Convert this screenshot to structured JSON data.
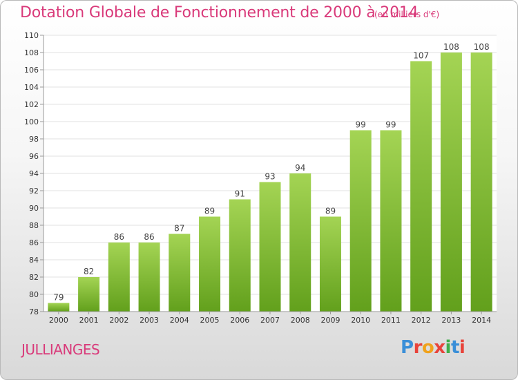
{
  "header": {
    "title": "Dotation Globale de Fonctionnement de 2000 à 2014",
    "subtitle": "(en milliers d'€)"
  },
  "footer": {
    "town": "JULLIANGES",
    "logo_text": "Proxiti",
    "logo_colors": [
      "#3a8fd8",
      "#e8433a",
      "#f0a21c",
      "#e8433a",
      "#3fae49",
      "#3a8fd8",
      "#e8433a"
    ]
  },
  "colors": {
    "accent_text": "#d93a7a",
    "bar_light": "#a4d454",
    "bar_dark": "#62a01c",
    "grid": "#e2e2e2"
  },
  "chart_data": {
    "type": "bar",
    "title": "Dotation Globale de Fonctionnement de 2000 à 2014",
    "subtitle": "(en milliers d'€)",
    "categories": [
      "2000",
      "2001",
      "2002",
      "2003",
      "2004",
      "2005",
      "2006",
      "2007",
      "2008",
      "2009",
      "2010",
      "2011",
      "2012",
      "2013",
      "2014"
    ],
    "values": [
      79,
      82,
      86,
      86,
      87,
      89,
      91,
      93,
      94,
      89,
      99,
      99,
      107,
      108,
      108
    ],
    "ylim": [
      78,
      110
    ],
    "yticks": [
      78,
      80,
      82,
      84,
      86,
      88,
      90,
      92,
      94,
      96,
      98,
      100,
      102,
      104,
      106,
      108,
      110
    ],
    "xlabel": "",
    "ylabel": "",
    "grid": true,
    "data_labels": true
  }
}
